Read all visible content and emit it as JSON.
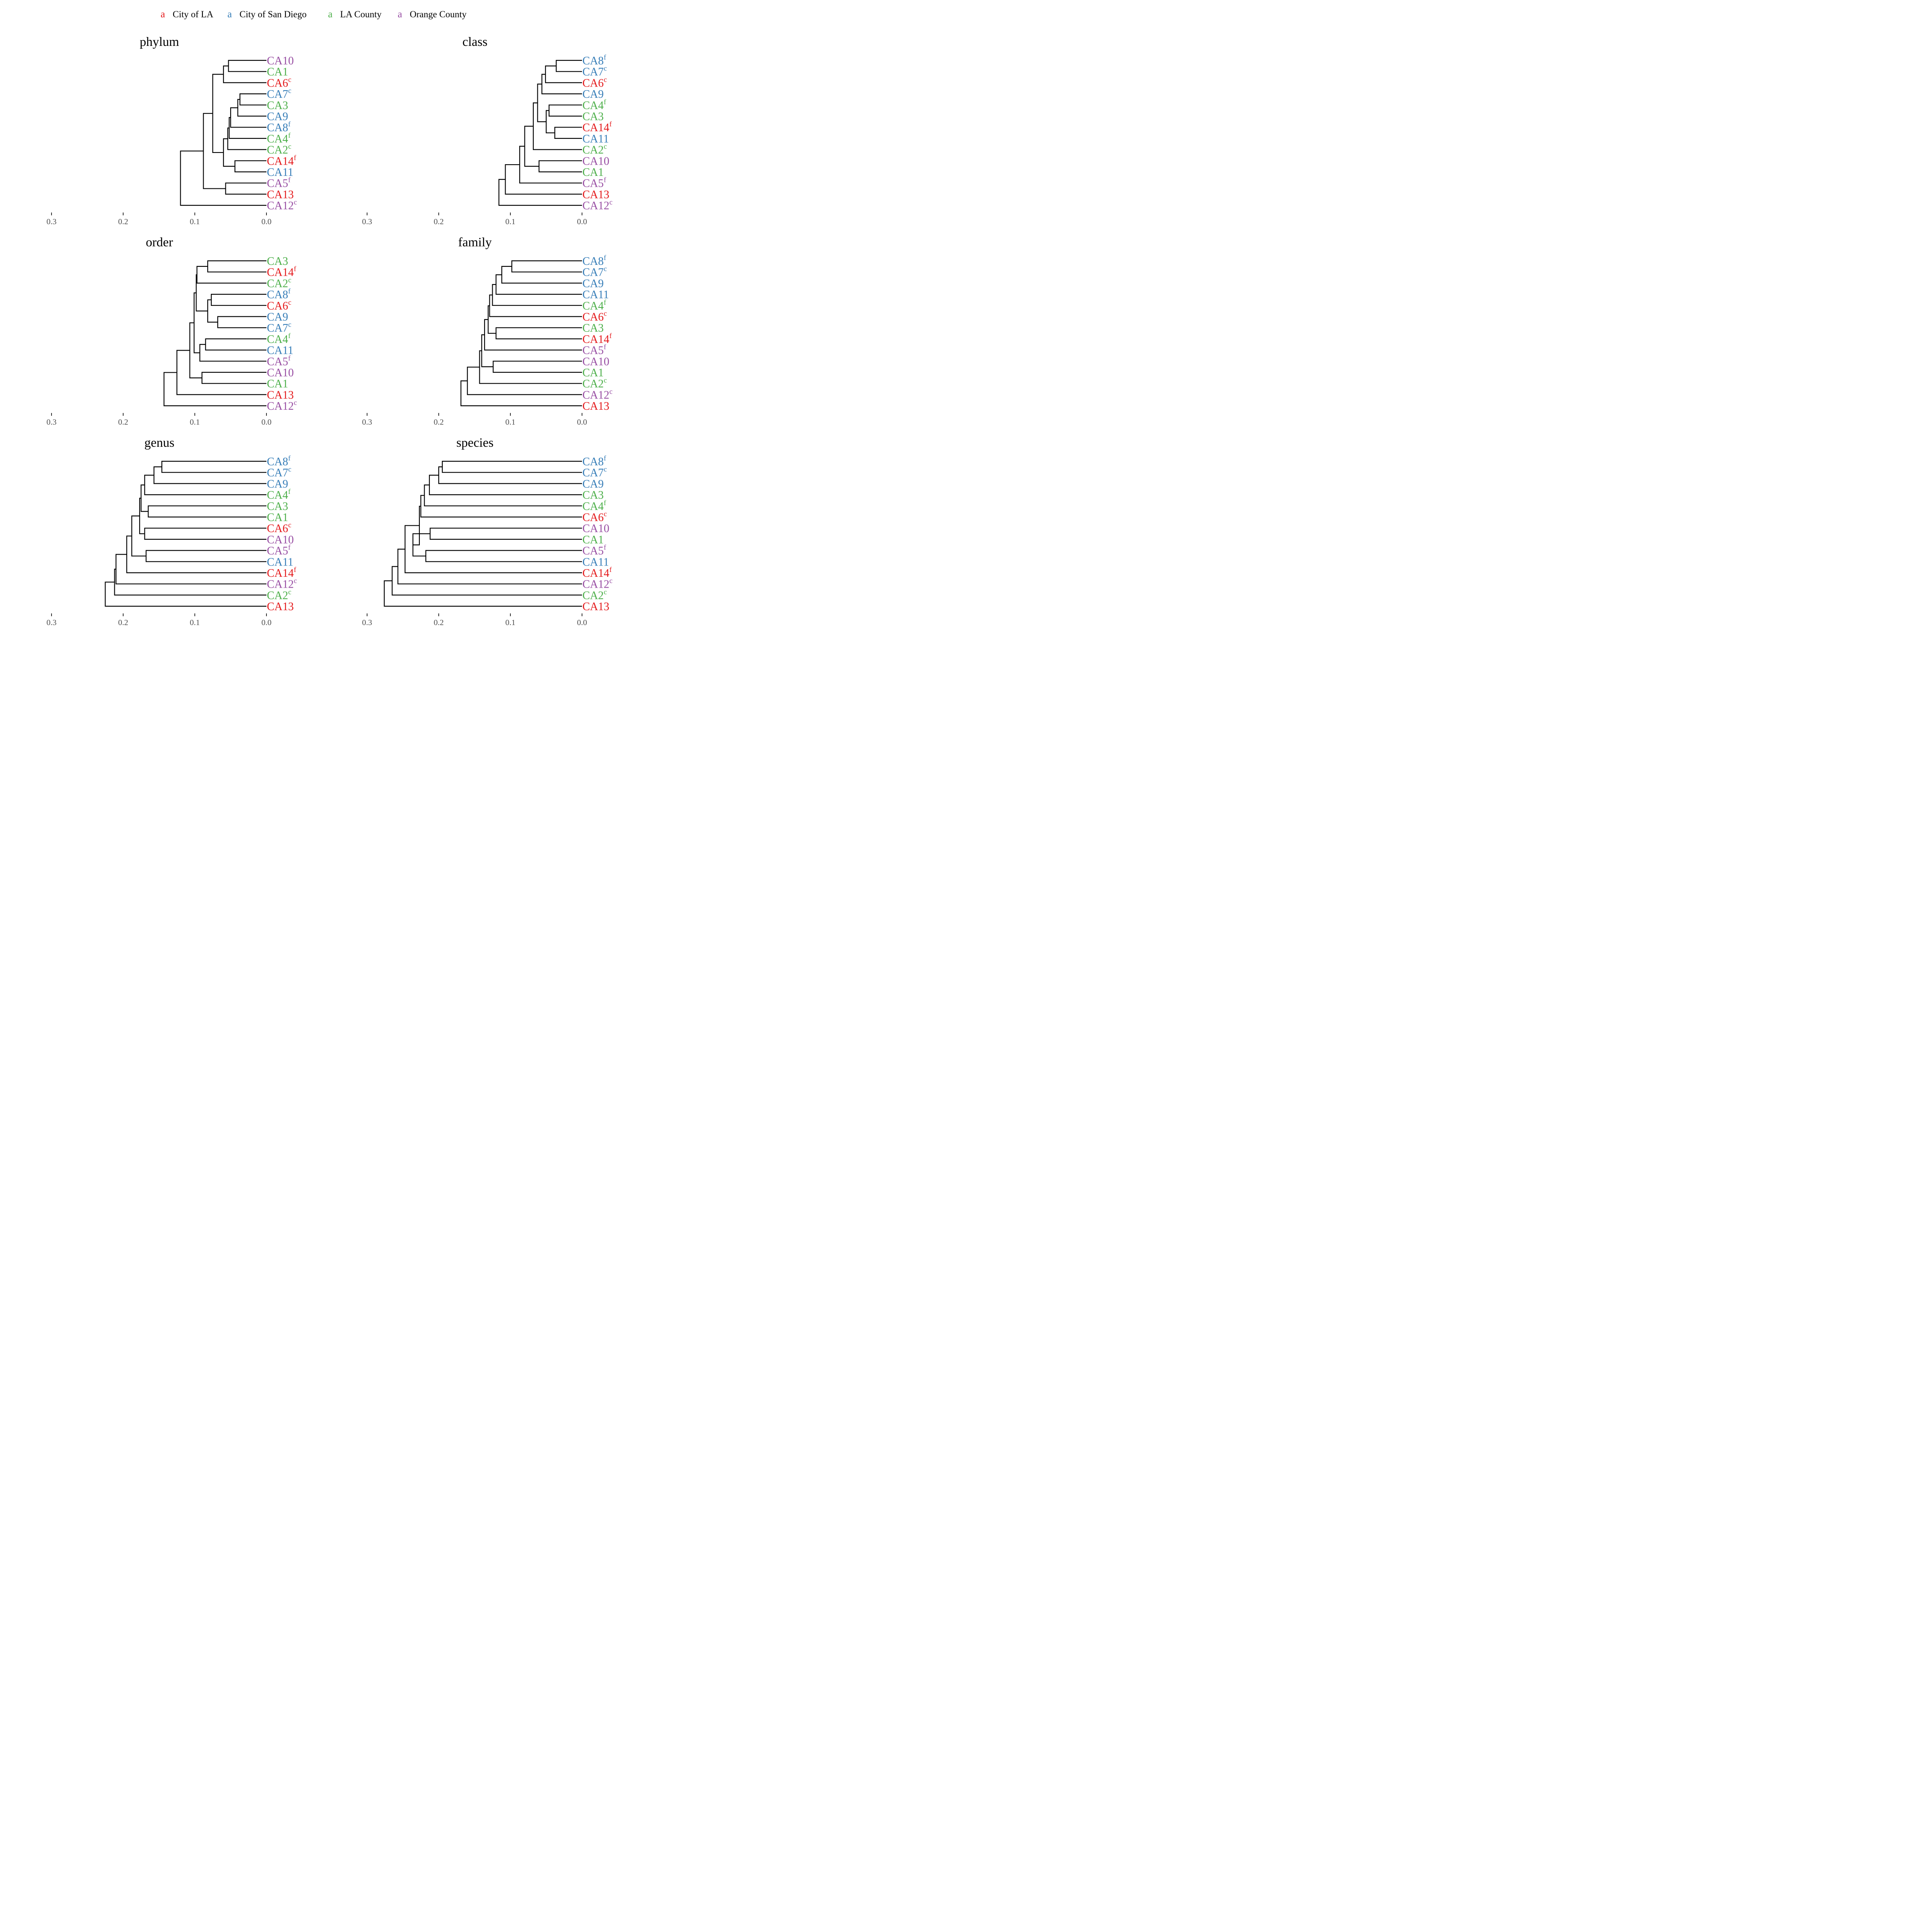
{
  "legend": {
    "key_glyph": "a",
    "items": [
      {
        "label": "City of LA",
        "color": "#E41A1C"
      },
      {
        "label": "City of San Diego",
        "color": "#377EB8"
      },
      {
        "label": "LA County",
        "color": "#4DAF4A"
      },
      {
        "label": "Orange County",
        "color": "#984EA3"
      }
    ]
  },
  "chart_data": [
    {
      "type": "dendrogram",
      "title": "phylum",
      "xlim": [
        0.3,
        0.0
      ],
      "ticks": [
        "0.3",
        "0.2",
        "0.1",
        "0.0"
      ],
      "leaves": [
        {
          "label": "CA10",
          "sup": "",
          "group": "Orange County"
        },
        {
          "label": "CA1",
          "sup": "",
          "group": "LA County"
        },
        {
          "label": "CA6",
          "sup": "c",
          "group": "City of LA"
        },
        {
          "label": "CA7",
          "sup": "c",
          "group": "City of San Diego"
        },
        {
          "label": "CA3",
          "sup": "",
          "group": "LA County"
        },
        {
          "label": "CA9",
          "sup": "",
          "group": "City of San Diego"
        },
        {
          "label": "CA8",
          "sup": "f",
          "group": "City of San Diego"
        },
        {
          "label": "CA4",
          "sup": "f",
          "group": "LA County"
        },
        {
          "label": "CA2",
          "sup": "c",
          "group": "LA County"
        },
        {
          "label": "CA14",
          "sup": "f",
          "group": "City of LA"
        },
        {
          "label": "CA11",
          "sup": "",
          "group": "City of San Diego"
        },
        {
          "label": "CA5",
          "sup": "f",
          "group": "Orange County"
        },
        {
          "label": "CA13",
          "sup": "",
          "group": "City of LA"
        },
        {
          "label": "CA12",
          "sup": "c",
          "group": "Orange County"
        }
      ],
      "merges": [
        {
          "a": 0,
          "b": 1,
          "h": 0.053
        },
        {
          "a": 14,
          "b": 2,
          "h": 0.06
        },
        {
          "a": 3,
          "b": 4,
          "h": 0.037
        },
        {
          "a": 16,
          "b": 5,
          "h": 0.04
        },
        {
          "a": 17,
          "b": 6,
          "h": 0.05
        },
        {
          "a": 18,
          "b": 7,
          "h": 0.052
        },
        {
          "a": 19,
          "b": 8,
          "h": 0.054
        },
        {
          "a": 9,
          "b": 10,
          "h": 0.044
        },
        {
          "a": 20,
          "b": 21,
          "h": 0.06
        },
        {
          "a": 15,
          "b": 22,
          "h": 0.075
        },
        {
          "a": 11,
          "b": 12,
          "h": 0.057
        },
        {
          "a": 23,
          "b": 24,
          "h": 0.088
        },
        {
          "a": 25,
          "b": 13,
          "h": 0.12
        }
      ]
    },
    {
      "type": "dendrogram",
      "title": "class",
      "xlim": [
        0.3,
        0.0
      ],
      "ticks": [
        "0.3",
        "0.2",
        "0.1",
        "0.0"
      ],
      "leaves": [
        {
          "label": "CA8",
          "sup": "f",
          "group": "City of San Diego"
        },
        {
          "label": "CA7",
          "sup": "c",
          "group": "City of San Diego"
        },
        {
          "label": "CA6",
          "sup": "c",
          "group": "City of LA"
        },
        {
          "label": "CA9",
          "sup": "",
          "group": "City of San Diego"
        },
        {
          "label": "CA4",
          "sup": "f",
          "group": "LA County"
        },
        {
          "label": "CA3",
          "sup": "",
          "group": "LA County"
        },
        {
          "label": "CA14",
          "sup": "f",
          "group": "City of LA"
        },
        {
          "label": "CA11",
          "sup": "",
          "group": "City of San Diego"
        },
        {
          "label": "CA2",
          "sup": "c",
          "group": "LA County"
        },
        {
          "label": "CA10",
          "sup": "",
          "group": "Orange County"
        },
        {
          "label": "CA1",
          "sup": "",
          "group": "LA County"
        },
        {
          "label": "CA5",
          "sup": "f",
          "group": "Orange County"
        },
        {
          "label": "CA13",
          "sup": "",
          "group": "City of LA"
        },
        {
          "label": "CA12",
          "sup": "c",
          "group": "Orange County"
        }
      ],
      "merges": [
        {
          "a": 0,
          "b": 1,
          "h": 0.036
        },
        {
          "a": 14,
          "b": 2,
          "h": 0.051
        },
        {
          "a": 15,
          "b": 3,
          "h": 0.056
        },
        {
          "a": 4,
          "b": 5,
          "h": 0.046
        },
        {
          "a": 6,
          "b": 7,
          "h": 0.038
        },
        {
          "a": 17,
          "b": 18,
          "h": 0.05
        },
        {
          "a": 16,
          "b": 19,
          "h": 0.062
        },
        {
          "a": 20,
          "b": 8,
          "h": 0.068
        },
        {
          "a": 9,
          "b": 10,
          "h": 0.06
        },
        {
          "a": 21,
          "b": 22,
          "h": 0.08
        },
        {
          "a": 23,
          "b": 11,
          "h": 0.087
        },
        {
          "a": 24,
          "b": 12,
          "h": 0.107
        },
        {
          "a": 25,
          "b": 13,
          "h": 0.116
        }
      ]
    },
    {
      "type": "dendrogram",
      "title": "order",
      "xlim": [
        0.3,
        0.0
      ],
      "ticks": [
        "0.3",
        "0.2",
        "0.1",
        "0.0"
      ],
      "leaves": [
        {
          "label": "CA3",
          "sup": "",
          "group": "LA County"
        },
        {
          "label": "CA14",
          "sup": "f",
          "group": "City of LA"
        },
        {
          "label": "CA2",
          "sup": "c",
          "group": "LA County"
        },
        {
          "label": "CA8",
          "sup": "f",
          "group": "City of San Diego"
        },
        {
          "label": "CA6",
          "sup": "c",
          "group": "City of LA"
        },
        {
          "label": "CA9",
          "sup": "",
          "group": "City of San Diego"
        },
        {
          "label": "CA7",
          "sup": "c",
          "group": "City of San Diego"
        },
        {
          "label": "CA4",
          "sup": "f",
          "group": "LA County"
        },
        {
          "label": "CA11",
          "sup": "",
          "group": "City of San Diego"
        },
        {
          "label": "CA5",
          "sup": "f",
          "group": "Orange County"
        },
        {
          "label": "CA10",
          "sup": "",
          "group": "Orange County"
        },
        {
          "label": "CA1",
          "sup": "",
          "group": "LA County"
        },
        {
          "label": "CA13",
          "sup": "",
          "group": "City of LA"
        },
        {
          "label": "CA12",
          "sup": "c",
          "group": "Orange County"
        }
      ],
      "merges": [
        {
          "a": 0,
          "b": 1,
          "h": 0.082
        },
        {
          "a": 14,
          "b": 2,
          "h": 0.097
        },
        {
          "a": 3,
          "b": 4,
          "h": 0.077
        },
        {
          "a": 5,
          "b": 6,
          "h": 0.068
        },
        {
          "a": 16,
          "b": 17,
          "h": 0.082
        },
        {
          "a": 15,
          "b": 18,
          "h": 0.098
        },
        {
          "a": 7,
          "b": 8,
          "h": 0.085
        },
        {
          "a": 20,
          "b": 9,
          "h": 0.093
        },
        {
          "a": 19,
          "b": 21,
          "h": 0.101
        },
        {
          "a": 10,
          "b": 11,
          "h": 0.09
        },
        {
          "a": 22,
          "b": 23,
          "h": 0.107
        },
        {
          "a": 24,
          "b": 12,
          "h": 0.125
        },
        {
          "a": 25,
          "b": 13,
          "h": 0.143
        }
      ]
    },
    {
      "type": "dendrogram",
      "title": "family",
      "xlim": [
        0.3,
        0.0
      ],
      "ticks": [
        "0.3",
        "0.2",
        "0.1",
        "0.0"
      ],
      "leaves": [
        {
          "label": "CA8",
          "sup": "f",
          "group": "City of San Diego"
        },
        {
          "label": "CA7",
          "sup": "c",
          "group": "City of San Diego"
        },
        {
          "label": "CA9",
          "sup": "",
          "group": "City of San Diego"
        },
        {
          "label": "CA11",
          "sup": "",
          "group": "City of San Diego"
        },
        {
          "label": "CA4",
          "sup": "f",
          "group": "LA County"
        },
        {
          "label": "CA6",
          "sup": "c",
          "group": "City of LA"
        },
        {
          "label": "CA3",
          "sup": "",
          "group": "LA County"
        },
        {
          "label": "CA14",
          "sup": "f",
          "group": "City of LA"
        },
        {
          "label": "CA5",
          "sup": "f",
          "group": "Orange County"
        },
        {
          "label": "CA10",
          "sup": "",
          "group": "Orange County"
        },
        {
          "label": "CA1",
          "sup": "",
          "group": "LA County"
        },
        {
          "label": "CA2",
          "sup": "c",
          "group": "LA County"
        },
        {
          "label": "CA12",
          "sup": "c",
          "group": "Orange County"
        },
        {
          "label": "CA13",
          "sup": "",
          "group": "City of LA"
        }
      ],
      "merges": [
        {
          "a": 0,
          "b": 1,
          "h": 0.098
        },
        {
          "a": 14,
          "b": 2,
          "h": 0.112
        },
        {
          "a": 15,
          "b": 3,
          "h": 0.12
        },
        {
          "a": 16,
          "b": 4,
          "h": 0.125
        },
        {
          "a": 17,
          "b": 5,
          "h": 0.129
        },
        {
          "a": 6,
          "b": 7,
          "h": 0.12
        },
        {
          "a": 18,
          "b": 19,
          "h": 0.131
        },
        {
          "a": 20,
          "b": 8,
          "h": 0.136
        },
        {
          "a": 9,
          "b": 10,
          "h": 0.124
        },
        {
          "a": 21,
          "b": 22,
          "h": 0.14
        },
        {
          "a": 23,
          "b": 11,
          "h": 0.143
        },
        {
          "a": 24,
          "b": 12,
          "h": 0.16
        },
        {
          "a": 25,
          "b": 13,
          "h": 0.169
        }
      ]
    },
    {
      "type": "dendrogram",
      "title": "genus",
      "xlim": [
        0.3,
        0.0
      ],
      "ticks": [
        "0.3",
        "0.2",
        "0.1",
        "0.0"
      ],
      "leaves": [
        {
          "label": "CA8",
          "sup": "f",
          "group": "City of San Diego"
        },
        {
          "label": "CA7",
          "sup": "c",
          "group": "City of San Diego"
        },
        {
          "label": "CA9",
          "sup": "",
          "group": "City of San Diego"
        },
        {
          "label": "CA4",
          "sup": "f",
          "group": "LA County"
        },
        {
          "label": "CA3",
          "sup": "",
          "group": "LA County"
        },
        {
          "label": "CA1",
          "sup": "",
          "group": "LA County"
        },
        {
          "label": "CA6",
          "sup": "c",
          "group": "City of LA"
        },
        {
          "label": "CA10",
          "sup": "",
          "group": "Orange County"
        },
        {
          "label": "CA5",
          "sup": "f",
          "group": "Orange County"
        },
        {
          "label": "CA11",
          "sup": "",
          "group": "City of San Diego"
        },
        {
          "label": "CA14",
          "sup": "f",
          "group": "City of LA"
        },
        {
          "label": "CA12",
          "sup": "c",
          "group": "Orange County"
        },
        {
          "label": "CA2",
          "sup": "c",
          "group": "LA County"
        },
        {
          "label": "CA13",
          "sup": "",
          "group": "City of LA"
        }
      ],
      "merges": [
        {
          "a": 0,
          "b": 1,
          "h": 0.146
        },
        {
          "a": 14,
          "b": 2,
          "h": 0.157
        },
        {
          "a": 15,
          "b": 3,
          "h": 0.17
        },
        {
          "a": 4,
          "b": 5,
          "h": 0.165
        },
        {
          "a": 16,
          "b": 17,
          "h": 0.175
        },
        {
          "a": 6,
          "b": 7,
          "h": 0.17
        },
        {
          "a": 18,
          "b": 19,
          "h": 0.177
        },
        {
          "a": 8,
          "b": 9,
          "h": 0.168
        },
        {
          "a": 20,
          "b": 21,
          "h": 0.188
        },
        {
          "a": 22,
          "b": 10,
          "h": 0.195
        },
        {
          "a": 23,
          "b": 11,
          "h": 0.21
        },
        {
          "a": 24,
          "b": 12,
          "h": 0.212
        },
        {
          "a": 25,
          "b": 13,
          "h": 0.225
        }
      ]
    },
    {
      "type": "dendrogram",
      "title": "species",
      "xlim": [
        0.3,
        0.0
      ],
      "ticks": [
        "0.3",
        "0.2",
        "0.1",
        "0.0"
      ],
      "leaves": [
        {
          "label": "CA8",
          "sup": "f",
          "group": "City of San Diego"
        },
        {
          "label": "CA7",
          "sup": "c",
          "group": "City of San Diego"
        },
        {
          "label": "CA9",
          "sup": "",
          "group": "City of San Diego"
        },
        {
          "label": "CA3",
          "sup": "",
          "group": "LA County"
        },
        {
          "label": "CA4",
          "sup": "f",
          "group": "LA County"
        },
        {
          "label": "CA6",
          "sup": "c",
          "group": "City of LA"
        },
        {
          "label": "CA10",
          "sup": "",
          "group": "Orange County"
        },
        {
          "label": "CA1",
          "sup": "",
          "group": "LA County"
        },
        {
          "label": "CA5",
          "sup": "f",
          "group": "Orange County"
        },
        {
          "label": "CA11",
          "sup": "",
          "group": "City of San Diego"
        },
        {
          "label": "CA14",
          "sup": "f",
          "group": "City of LA"
        },
        {
          "label": "CA12",
          "sup": "c",
          "group": "Orange County"
        },
        {
          "label": "CA2",
          "sup": "c",
          "group": "LA County"
        },
        {
          "label": "CA13",
          "sup": "",
          "group": "City of LA"
        }
      ],
      "merges": [
        {
          "a": 0,
          "b": 1,
          "h": 0.195
        },
        {
          "a": 14,
          "b": 2,
          "h": 0.2
        },
        {
          "a": 15,
          "b": 3,
          "h": 0.213
        },
        {
          "a": 16,
          "b": 4,
          "h": 0.22
        },
        {
          "a": 17,
          "b": 5,
          "h": 0.225
        },
        {
          "a": 6,
          "b": 7,
          "h": 0.212
        },
        {
          "a": 8,
          "b": 9,
          "h": 0.218
        },
        {
          "a": 19,
          "b": 20,
          "h": 0.236
        },
        {
          "a": 18,
          "b": 21,
          "h": 0.227
        },
        {
          "a": 22,
          "b": 10,
          "h": 0.247
        },
        {
          "a": 23,
          "b": 11,
          "h": 0.257
        },
        {
          "a": 24,
          "b": 12,
          "h": 0.265
        },
        {
          "a": 25,
          "b": 13,
          "h": 0.276
        }
      ]
    }
  ]
}
